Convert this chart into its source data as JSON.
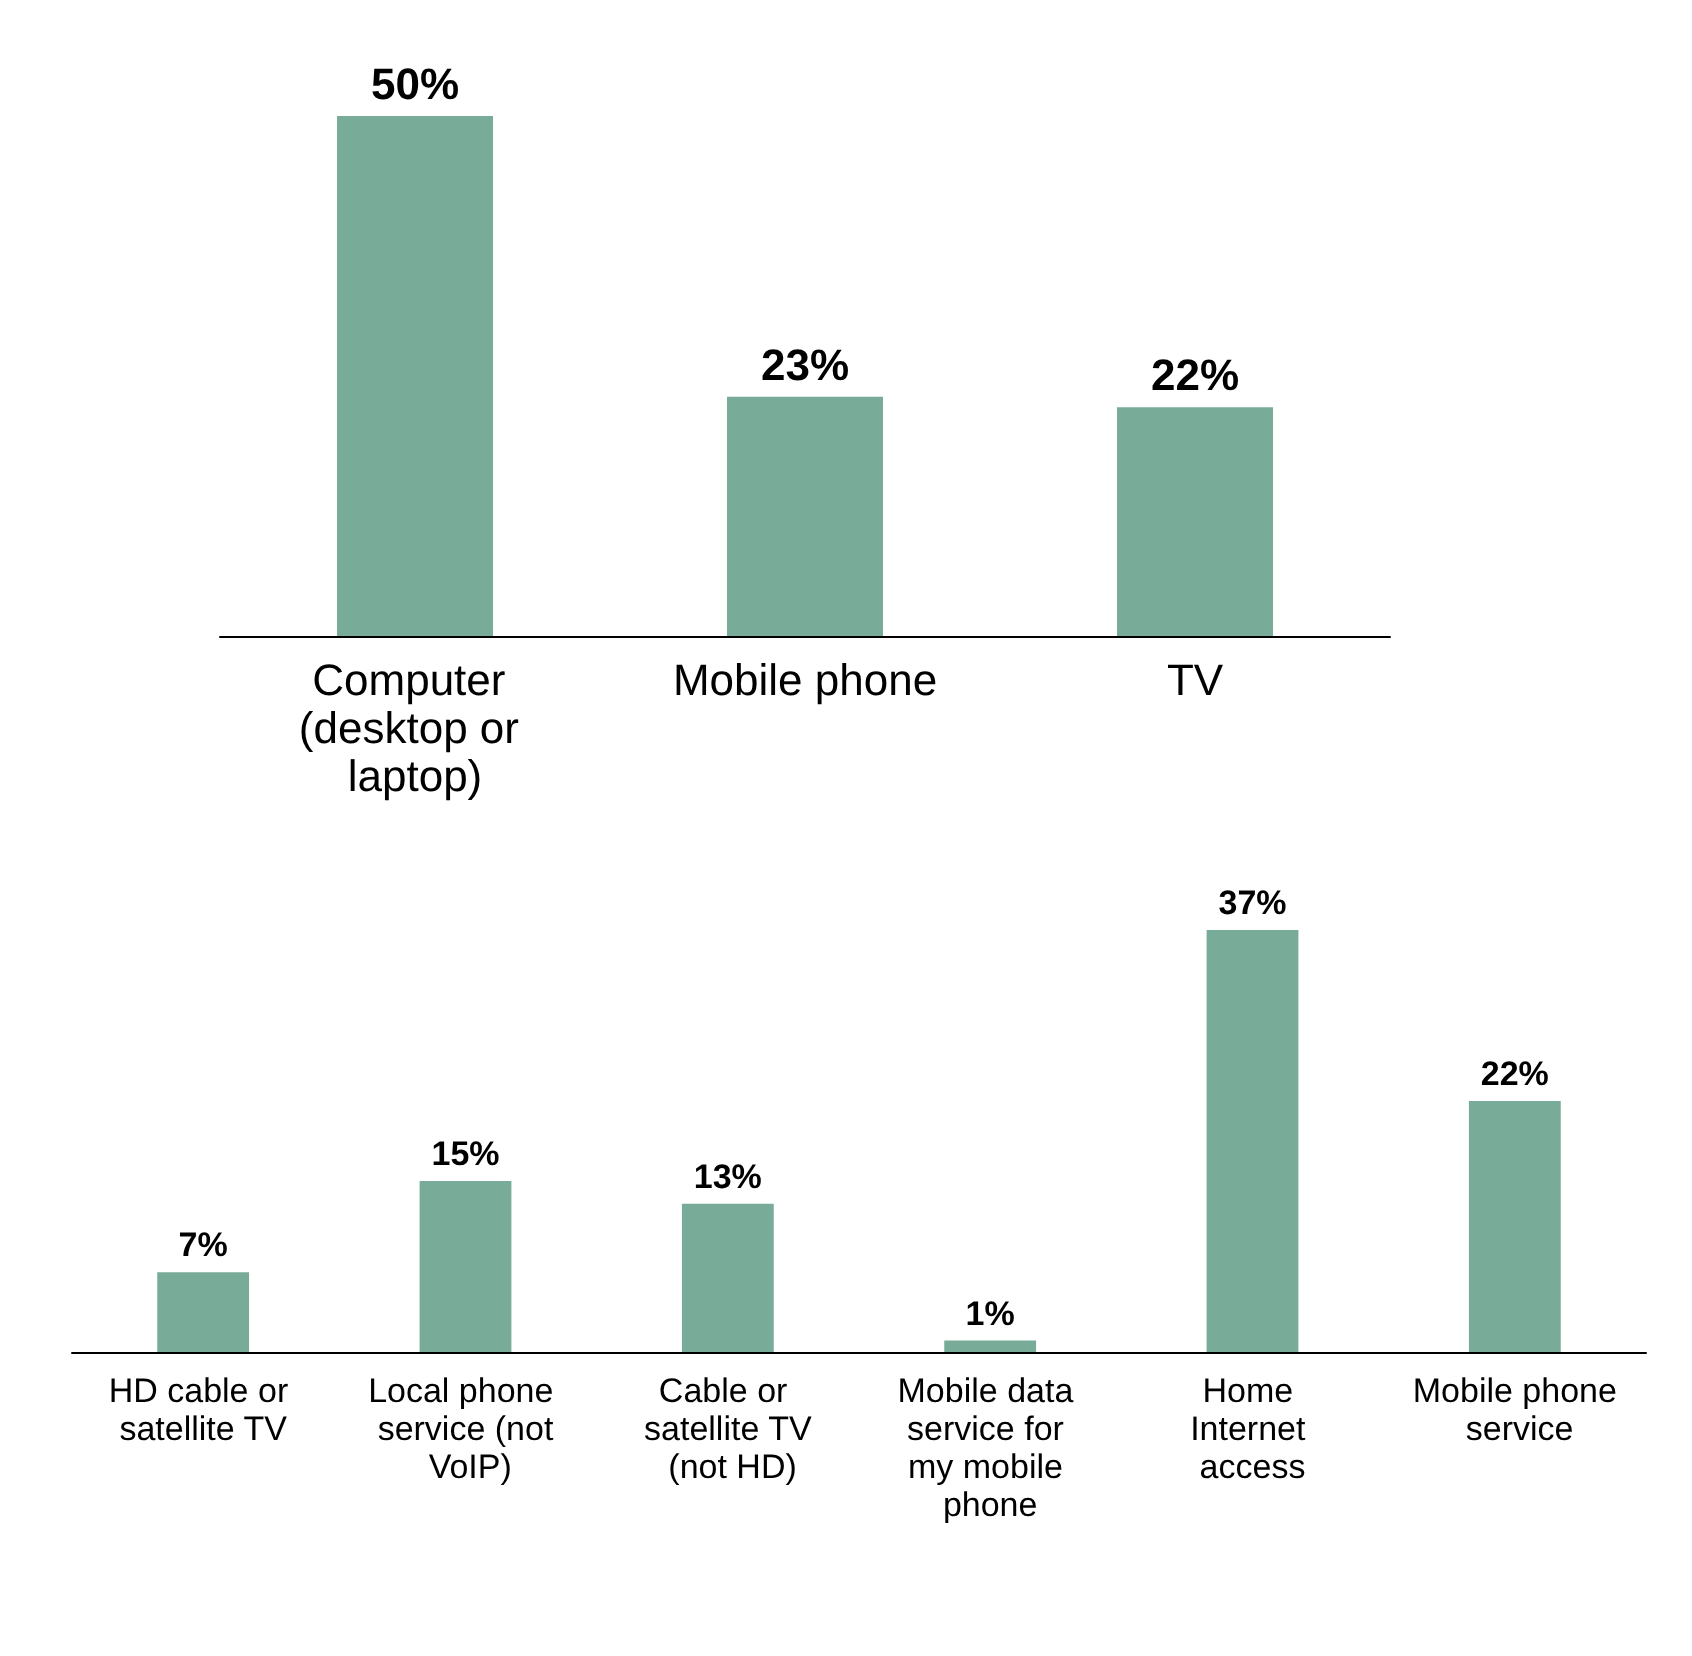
{
  "chart_data": [
    {
      "type": "bar",
      "categories": [
        "Computer (desktop or laptop)",
        "Mobile phone",
        "TV"
      ],
      "values": [
        50,
        23,
        22
      ],
      "value_labels": [
        "50%",
        "23%",
        "22%"
      ],
      "color": "#78ab98",
      "grid": false,
      "tick_labels": "x"
    },
    {
      "type": "bar",
      "categories": [
        "HD cable or satellite TV",
        "Local phone service (not VoIP)",
        "Cable or satellite TV (not HD)",
        "Mobile data service for my mobile phone",
        "Home Internet access",
        "Mobile phone service"
      ],
      "values": [
        7,
        15,
        13,
        1,
        37,
        22
      ],
      "value_labels": [
        "7%",
        "15%",
        "13%",
        "1%",
        "37%",
        "22%"
      ],
      "color": "#78ab98",
      "grid": false,
      "tick_labels": "x"
    }
  ]
}
